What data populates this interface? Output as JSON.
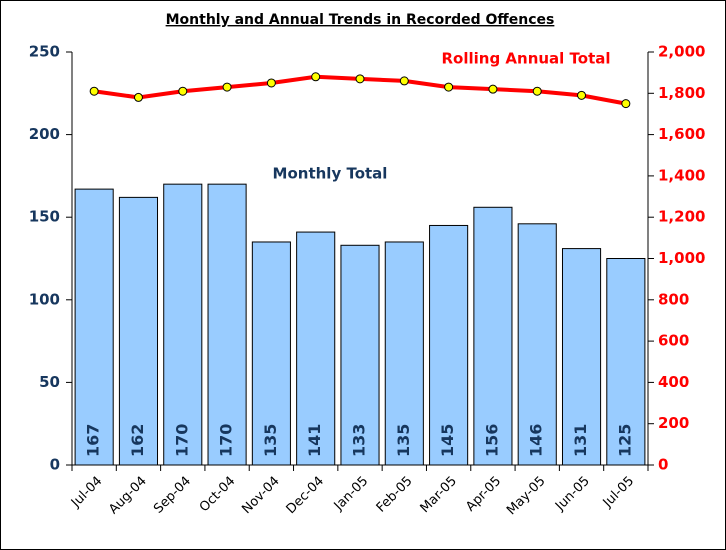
{
  "chart_data": {
    "type": "bar",
    "title": "Monthly and Annual Trends in Recorded Offences",
    "categories": [
      "Jul-04",
      "Aug-04",
      "Sep-04",
      "Oct-04",
      "Nov-04",
      "Dec-04",
      "Jan-05",
      "Feb-05",
      "Mar-05",
      "Apr-05",
      "May-05",
      "Jun-05",
      "Jul-05"
    ],
    "series": [
      {
        "name": "Monthly Total",
        "color": "#99ccff",
        "values": [
          167,
          162,
          170,
          170,
          135,
          141,
          133,
          135,
          145,
          156,
          146,
          131,
          125
        ]
      },
      {
        "name": "Rolling Annual Total",
        "color": "#ff0000",
        "axis": "y2",
        "marker_color": "#ffff00",
        "values": [
          1810,
          1780,
          1810,
          1830,
          1850,
          1880,
          1870,
          1860,
          1830,
          1820,
          1810,
          1790,
          1750
        ]
      }
    ],
    "ylim": [
      0,
      250
    ],
    "yticks": [
      0,
      50,
      100,
      150,
      200,
      250
    ],
    "y2lim": [
      0,
      2000
    ],
    "y2ticks": [
      0,
      200,
      400,
      600,
      800,
      {
        "value": 1000,
        "label": "1,000"
      },
      {
        "value": 1200,
        "label": "1,200"
      },
      {
        "value": 1400,
        "label": "1,400"
      },
      {
        "value": 1600,
        "label": "1,600"
      },
      {
        "value": 1800,
        "label": "1,800"
      },
      {
        "value": 2000,
        "label": "2,000"
      }
    ]
  }
}
